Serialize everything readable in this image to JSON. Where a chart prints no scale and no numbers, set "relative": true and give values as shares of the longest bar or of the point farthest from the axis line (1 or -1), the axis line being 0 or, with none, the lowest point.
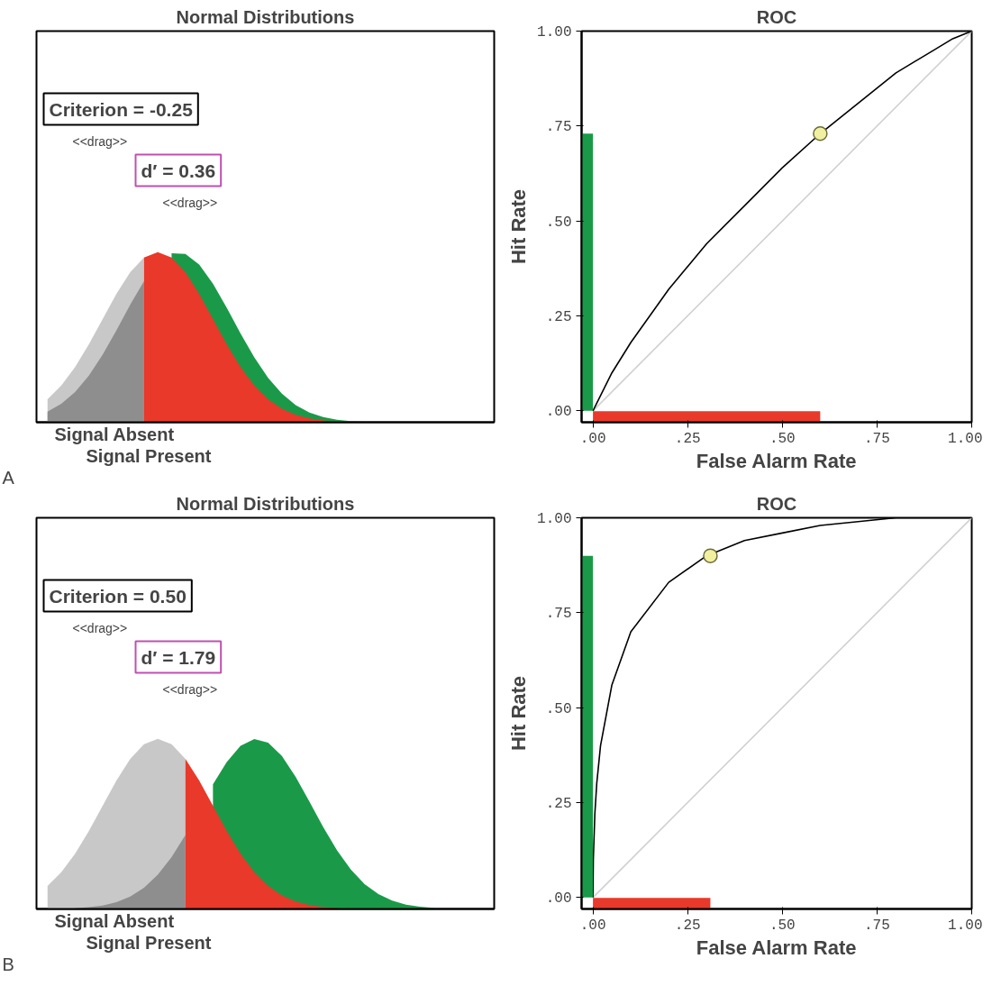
{
  "chart_data": [
    {
      "type": "area",
      "title": "Normal Distributions",
      "relative": true,
      "categories": [
        null,
        null,
        null,
        null,
        null,
        null,
        null,
        null,
        null,
        null,
        null,
        null,
        null,
        null,
        null,
        null,
        null,
        null,
        null,
        null,
        null,
        null,
        null,
        null,
        null,
        null,
        null,
        null,
        null,
        null,
        null,
        null,
        null
      ],
      "series": [
        {
          "color": "#c8c8c8",
          "values": [
            0.135,
            0.216,
            0.325,
            0.458,
            0.607,
            0.755,
            0.882,
            0.969,
            null,
            null,
            null,
            null,
            null,
            null,
            null,
            null,
            null,
            null,
            null,
            null,
            null,
            null,
            null,
            null,
            null,
            null,
            null,
            null,
            null,
            null,
            null,
            null,
            null
          ]
        },
        {
          "color": "#8e8e8e",
          "values": [
            0.062,
            0.108,
            0.177,
            0.274,
            0.397,
            0.54,
            0.691,
            0.83,
            null,
            null,
            null,
            null,
            null,
            null,
            null,
            null,
            null,
            null,
            null,
            null,
            null,
            null,
            null,
            null,
            null,
            null,
            null,
            null,
            null,
            null,
            null,
            null,
            null
          ]
        },
        {
          "color": "#1a9a48",
          "values": [
            null,
            null,
            null,
            null,
            null,
            null,
            null,
            null,
            null,
            0.994,
            0.99,
            0.927,
            0.815,
            0.673,
            0.522,
            0.381,
            0.261,
            0.168,
            0.101,
            0.057,
            0.031,
            0.015,
            0.007,
            0.003,
            null,
            null,
            null,
            null,
            null,
            null,
            null,
            null,
            null
          ]
        },
        {
          "color": "#e8392a",
          "values": [
            null,
            null,
            null,
            null,
            null,
            null,
            null,
            0.969,
            1,
            0.969,
            0.882,
            0.755,
            0.607,
            0.458,
            0.325,
            0.216,
            0.135,
            0.08,
            0.044,
            0.023,
            0.011,
            0.005,
            null,
            null,
            null,
            null,
            null,
            null,
            null,
            null,
            null,
            null,
            null
          ]
        }
      ],
      "annotations": [
        "Criterion = -0.25",
        "<<drag>>",
        "d′ = 0.36",
        "<<drag>>",
        "Signal Absent",
        "Signal Present",
        "A"
      ]
    },
    {
      "type": "line",
      "title": "ROC",
      "xlabel": "False Alarm Rate",
      "ylabel": "Hit Rate",
      "xlim": [
        -0.03,
        1
      ],
      "ylim": [
        -0.03,
        1
      ],
      "xticks": [
        {
          "value": 0,
          "label": ".00"
        },
        {
          "value": 0.25,
          "label": ".25"
        },
        {
          "value": 0.5,
          "label": ".50"
        },
        {
          "value": 0.75,
          "label": ".75"
        },
        {
          "value": 1,
          "label": "1.00"
        }
      ],
      "yticks": [
        {
          "value": 0,
          "label": ".00"
        },
        {
          "value": 0.25,
          "label": ".25"
        },
        {
          "value": 0.5,
          "label": ".50"
        },
        {
          "value": 0.75,
          "label": ".75"
        },
        {
          "value": 1,
          "label": "1.00"
        }
      ],
      "series": [
        {
          "color": "#d0d0d0",
          "x": [
            0,
            1
          ],
          "values": [
            0,
            1
          ]
        },
        {
          "color": "#000000",
          "x": [
            0,
            0.01,
            0.05,
            0.1,
            0.2,
            0.3,
            0.4,
            0.5,
            0.6,
            0.7,
            0.8,
            0.9,
            0.95,
            1
          ],
          "values": [
            0,
            0.02,
            0.1,
            0.18,
            0.32,
            0.44,
            0.54,
            0.64,
            0.73,
            0.81,
            0.89,
            0.95,
            0.98,
            1
          ]
        },
        {
          "type": "bar",
          "color": "#1a9a48",
          "x": [
            -0.015
          ],
          "values": [
            0.73
          ]
        },
        {
          "color": "#e8392a",
          "x": [
            0,
            0.6
          ],
          "values": [
            -0.015,
            -0.015
          ]
        },
        {
          "type": "scatter",
          "color": "#f0f0a0",
          "x": [
            0.6
          ],
          "values": [
            0.73
          ]
        }
      ]
    },
    {
      "type": "area",
      "title": "Normal Distributions",
      "relative": true,
      "categories": [
        null,
        null,
        null,
        null,
        null,
        null,
        null,
        null,
        null,
        null,
        null,
        null,
        null,
        null,
        null,
        null,
        null,
        null,
        null,
        null,
        null,
        null,
        null,
        null,
        null,
        null,
        null,
        null,
        null,
        null,
        null,
        null,
        null
      ],
      "series": [
        {
          "color": "#c8c8c8",
          "values": [
            0.135,
            0.216,
            0.325,
            0.458,
            0.607,
            0.755,
            0.882,
            0.969,
            1,
            0.969,
            0.882,
            null,
            null,
            null,
            null,
            null,
            null,
            null,
            null,
            null,
            null,
            null,
            null,
            null,
            null,
            null,
            null,
            null,
            null,
            null,
            null,
            null,
            null
          ]
        },
        {
          "color": "#8e8e8e",
          "values": [
            null,
            null,
            0.004,
            0.01,
            0.02,
            0.04,
            0.073,
            0.125,
            0.201,
            0.305,
            0.435,
            null,
            null,
            null,
            null,
            null,
            null,
            null,
            null,
            null,
            null,
            null,
            null,
            null,
            null,
            null,
            null,
            null,
            null,
            null,
            null,
            null,
            null
          ]
        },
        {
          "color": "#1a9a48",
          "values": [
            null,
            null,
            null,
            null,
            null,
            null,
            null,
            null,
            null,
            null,
            null,
            null,
            0.732,
            0.864,
            0.959,
            0.999,
            0.978,
            0.9,
            0.777,
            0.631,
            0.481,
            0.344,
            0.232,
            0.146,
            0.087,
            0.049,
            0.025,
            0.013,
            0.006,
            null,
            null,
            null,
            null
          ]
        },
        {
          "color": "#e8392a",
          "values": [
            null,
            null,
            null,
            null,
            null,
            null,
            null,
            null,
            null,
            null,
            0.882,
            0.755,
            0.607,
            0.458,
            0.325,
            0.216,
            0.135,
            0.08,
            0.044,
            0.023,
            0.011,
            0.005,
            null,
            null,
            null,
            null,
            null,
            null,
            null,
            null,
            null,
            null,
            null
          ]
        }
      ],
      "annotations": [
        "Criterion = 0.50",
        "<<drag>>",
        "d′ = 1.79",
        "<<drag>>",
        "Signal Absent",
        "Signal Present",
        "B"
      ]
    },
    {
      "type": "line",
      "title": "ROC",
      "xlabel": "False Alarm Rate",
      "ylabel": "Hit Rate",
      "xlim": [
        -0.03,
        1
      ],
      "ylim": [
        -0.03,
        1
      ],
      "xticks": [
        {
          "value": 0,
          "label": ".00"
        },
        {
          "value": 0.25,
          "label": ".25"
        },
        {
          "value": 0.5,
          "label": ".50"
        },
        {
          "value": 0.75,
          "label": ".75"
        },
        {
          "value": 1,
          "label": "1.00"
        }
      ],
      "yticks": [
        {
          "value": 0,
          "label": ".00"
        },
        {
          "value": 0.25,
          "label": ".25"
        },
        {
          "value": 0.5,
          "label": ".50"
        },
        {
          "value": 0.75,
          "label": ".75"
        },
        {
          "value": 1,
          "label": "1.00"
        }
      ],
      "series": [
        {
          "color": "#d0d0d0",
          "x": [
            0,
            1
          ],
          "values": [
            0,
            1
          ]
        },
        {
          "color": "#000000",
          "x": [
            0,
            0.001,
            0.005,
            0.01,
            0.02,
            0.05,
            0.1,
            0.2,
            0.3,
            0.4,
            0.5,
            0.6,
            0.7,
            0.8,
            0.9,
            1
          ],
          "values": [
            0,
            0.1,
            0.22,
            0.3,
            0.4,
            0.56,
            0.7,
            0.83,
            0.9,
            0.94,
            0.96,
            0.98,
            0.99,
            1,
            1,
            1
          ]
        },
        {
          "type": "bar",
          "color": "#1a9a48",
          "x": [
            -0.015
          ],
          "values": [
            0.9
          ]
        },
        {
          "color": "#e8392a",
          "x": [
            0,
            0.31
          ],
          "values": [
            -0.015,
            -0.015
          ]
        },
        {
          "type": "scatter",
          "color": "#f0f0a0",
          "x": [
            0.31
          ],
          "values": [
            0.9
          ]
        }
      ]
    }
  ]
}
